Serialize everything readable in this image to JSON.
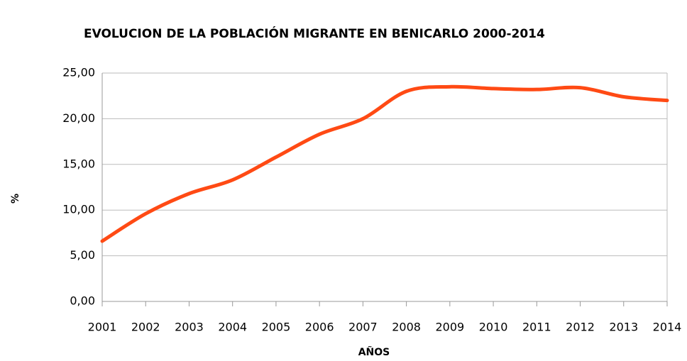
{
  "chart_data": {
    "type": "line",
    "title": "EVOLUCION DE LA POBLACIÓN MIGRANTE EN BENICARLO 2000-2014",
    "x_label": "AÑOS",
    "y_label": "%",
    "categories": [
      "2001",
      "2002",
      "2003",
      "2004",
      "2005",
      "2006",
      "2007",
      "2008",
      "2009",
      "2010",
      "2011",
      "2012",
      "2013",
      "2014"
    ],
    "series": [
      {
        "color": "#ff4a14",
        "values": [
          6.6,
          9.6,
          11.8,
          13.3,
          15.8,
          18.3,
          20.0,
          23.0,
          23.5,
          23.3,
          23.2,
          23.4,
          22.4,
          22.0
        ]
      }
    ],
    "ylim": [
      0,
      25
    ],
    "yticks": [
      {
        "value": 0,
        "label": "0,00"
      },
      {
        "value": 5,
        "label": "5,00"
      },
      {
        "value": 10,
        "label": "10,00"
      },
      {
        "value": 15,
        "label": "15,00"
      },
      {
        "value": 20,
        "label": "20,00"
      },
      {
        "value": 25,
        "label": "25,00"
      }
    ],
    "grid": true,
    "smooth": true
  }
}
